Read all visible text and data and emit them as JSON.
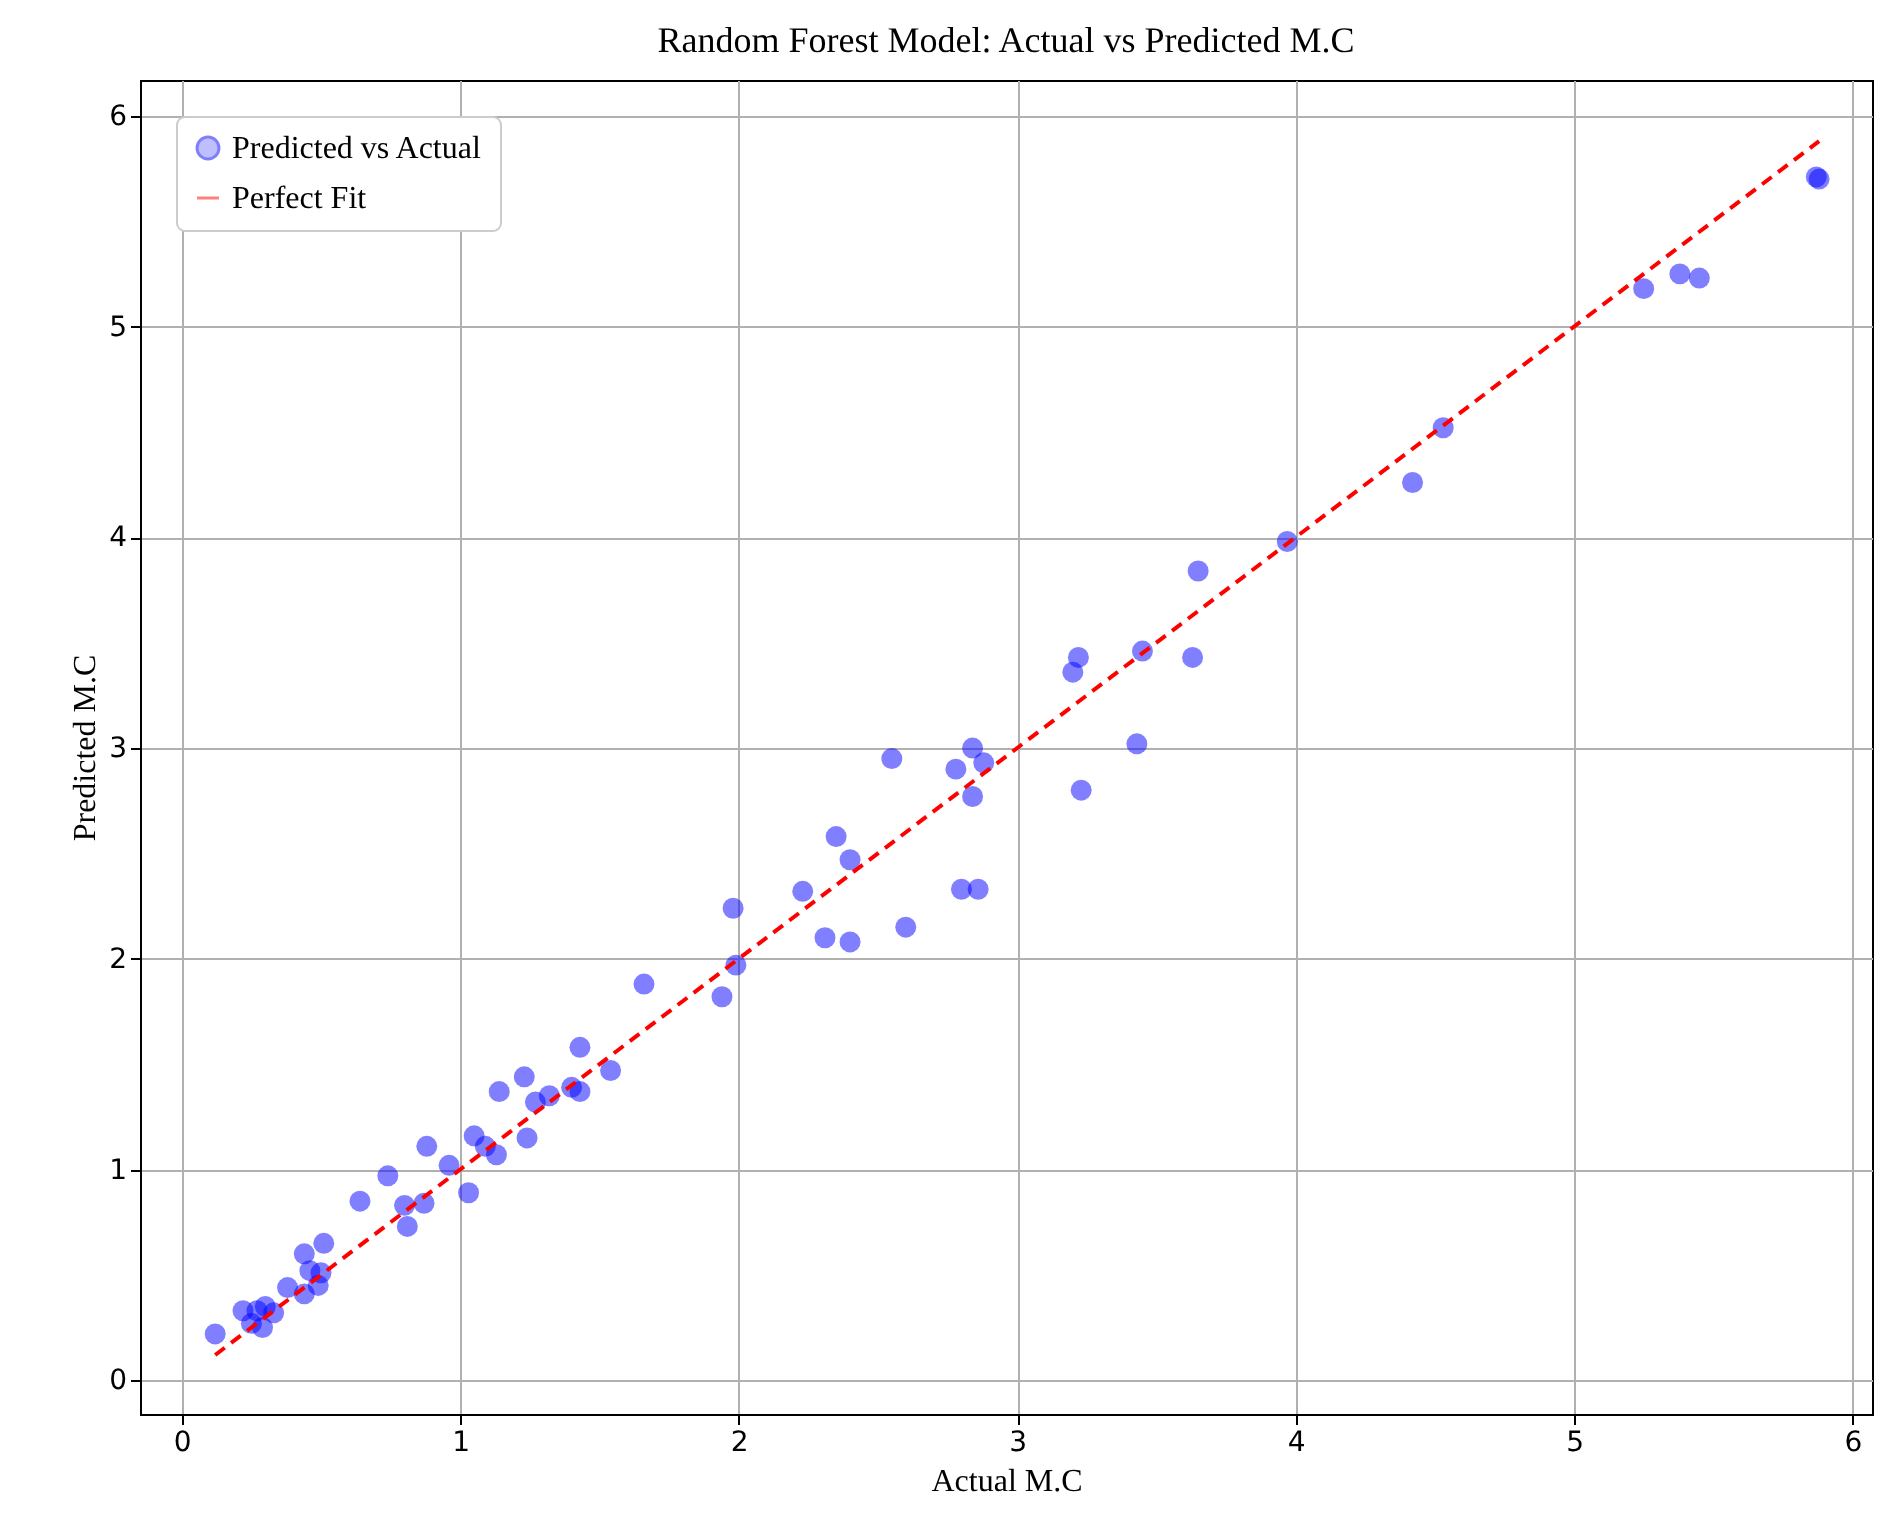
{
  "chart_data": {
    "type": "scatter",
    "title": "Random Forest Model: Actual vs Predicted M.C",
    "xlabel": "Actual M.C",
    "ylabel": "Predicted M.C",
    "xlim": [
      -0.15,
      6.07
    ],
    "ylim": [
      -0.16,
      6.17
    ],
    "xticks": [
      0,
      1,
      2,
      3,
      4,
      5,
      6
    ],
    "yticks": [
      0,
      1,
      2,
      3,
      4,
      5,
      6
    ],
    "grid": true,
    "legend": "top left",
    "series": [
      {
        "name": "Predicted vs Actual",
        "type": "scatter",
        "marker": "circle",
        "color": "#0000ff",
        "x": [
          0.12,
          0.22,
          0.25,
          0.27,
          0.29,
          0.3,
          0.33,
          0.38,
          0.44,
          0.44,
          0.46,
          0.49,
          0.5,
          0.51,
          0.64,
          0.74,
          0.8,
          0.81,
          0.87,
          0.88,
          0.96,
          1.03,
          1.05,
          1.09,
          1.13,
          1.14,
          1.23,
          1.24,
          1.27,
          1.32,
          1.4,
          1.43,
          1.43,
          1.54,
          1.66,
          1.94,
          1.98,
          1.99,
          2.23,
          2.31,
          2.35,
          2.4,
          2.4,
          2.55,
          2.6,
          2.78,
          2.8,
          2.84,
          2.84,
          2.86,
          2.88,
          3.2,
          3.22,
          3.23,
          3.43,
          3.45,
          3.63,
          3.65,
          3.97,
          4.42,
          4.53,
          5.25,
          5.38,
          5.45,
          5.88,
          5.87
        ],
        "values": [
          0.22,
          0.33,
          0.27,
          0.33,
          0.25,
          0.35,
          0.32,
          0.44,
          0.6,
          0.41,
          0.52,
          0.45,
          0.51,
          0.65,
          0.85,
          0.97,
          0.83,
          0.73,
          0.84,
          1.11,
          1.02,
          0.89,
          1.16,
          1.11,
          1.07,
          1.37,
          1.44,
          1.15,
          1.32,
          1.35,
          1.39,
          1.37,
          1.58,
          1.47,
          1.88,
          1.82,
          2.24,
          1.97,
          2.32,
          2.1,
          2.58,
          2.47,
          2.08,
          2.95,
          2.15,
          2.9,
          2.33,
          3.0,
          2.77,
          2.33,
          2.93,
          3.36,
          3.43,
          2.8,
          3.02,
          3.46,
          3.43,
          3.84,
          3.98,
          4.26,
          4.52,
          5.18,
          5.25,
          5.23,
          5.7,
          5.71
        ]
      },
      {
        "name": "Perfect Fit",
        "type": "line",
        "color": "#ff0000",
        "line_style": "dashed",
        "x": [
          0.12,
          5.88
        ],
        "values": [
          0.12,
          5.88
        ]
      }
    ]
  }
}
